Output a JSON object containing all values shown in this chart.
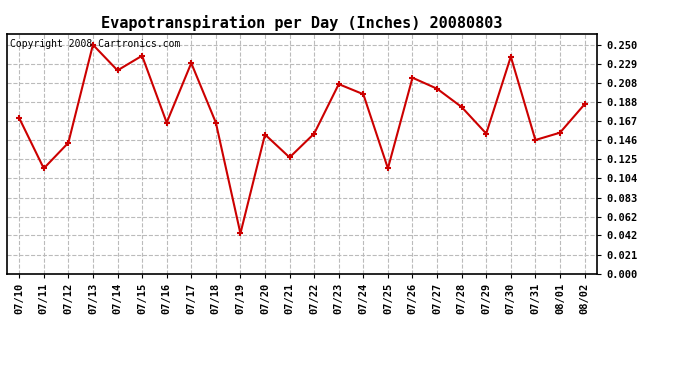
{
  "title": "Evapotranspiration per Day (Inches) 20080803",
  "copyright_text": "Copyright 2008 Cartronics.com",
  "dates": [
    "07/10",
    "07/11",
    "07/12",
    "07/13",
    "07/14",
    "07/15",
    "07/16",
    "07/17",
    "07/18",
    "07/19",
    "07/20",
    "07/21",
    "07/22",
    "07/23",
    "07/24",
    "07/25",
    "07/26",
    "07/27",
    "07/28",
    "07/29",
    "07/30",
    "07/31",
    "08/01",
    "08/02"
  ],
  "values": [
    0.17,
    0.115,
    0.143,
    0.25,
    0.222,
    0.238,
    0.165,
    0.23,
    0.165,
    0.044,
    0.152,
    0.127,
    0.153,
    0.207,
    0.196,
    0.115,
    0.214,
    0.202,
    0.182,
    0.153,
    0.237,
    0.146,
    0.154,
    0.185
  ],
  "line_color": "#cc0000",
  "marker": "+",
  "marker_size": 5,
  "bg_color": "#ffffff",
  "plot_bg_color": "#ffffff",
  "grid_color": "#bbbbbb",
  "yticks": [
    0.0,
    0.021,
    0.042,
    0.062,
    0.083,
    0.104,
    0.125,
    0.146,
    0.167,
    0.188,
    0.208,
    0.229,
    0.25
  ],
  "ylim": [
    0.0,
    0.262
  ],
  "title_fontsize": 11,
  "tick_fontsize": 7.5,
  "copyright_fontsize": 7
}
